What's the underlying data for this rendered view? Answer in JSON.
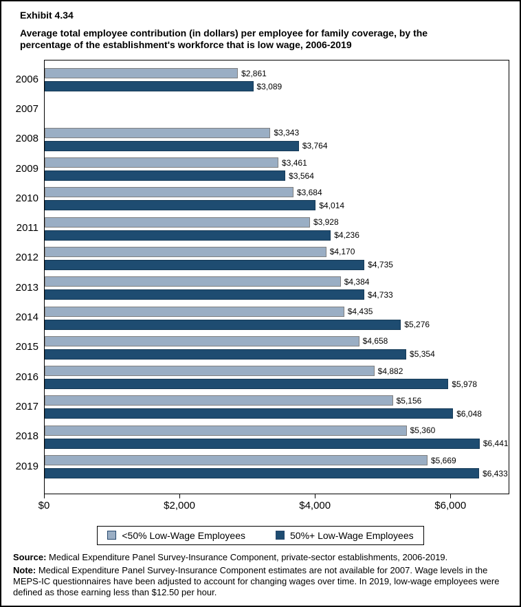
{
  "page": {
    "exhibit_label": "Exhibit 4.34",
    "title_lines": [
      "Average total employee contribution (in dollars) per employee for family coverage, by the",
      "percentage of the establishment's workforce that is low wage, 2006-2019"
    ]
  },
  "chart_data": {
    "type": "bar",
    "orientation": "horizontal",
    "title": "Average total employee contribution (in dollars) per employee for family coverage, by the percentage of the establishment's workforce that is low wage, 2006-2019",
    "categories": [
      "2006",
      "2007",
      "2008",
      "2009",
      "2010",
      "2011",
      "2012",
      "2013",
      "2014",
      "2015",
      "2016",
      "2017",
      "2018",
      "2019"
    ],
    "series": [
      {
        "name": "<50% Low-Wage Employees",
        "color": "#9aaec4",
        "border_color": "#7f7f7f",
        "values": [
          2861,
          null,
          3343,
          3461,
          3684,
          3928,
          4170,
          4384,
          4435,
          4658,
          4882,
          5156,
          5360,
          5669
        ],
        "labels": [
          "$2,861",
          "",
          "$3,343",
          "$3,461",
          "$3,684",
          "$3,928",
          "$4,170",
          "$4,384",
          "$4,435",
          "$4,658",
          "$4,882",
          "$5,156",
          "$5,360",
          "$5,669"
        ]
      },
      {
        "name": "50%+ Low-Wage Employees",
        "color": "#1e4c71",
        "border_color": "#163a57",
        "values": [
          3089,
          null,
          3764,
          3564,
          4014,
          4236,
          4735,
          4733,
          5276,
          5354,
          5978,
          6048,
          6441,
          6433
        ],
        "labels": [
          "$3,089",
          "",
          "$3,764",
          "$3,564",
          "$4,014",
          "$4,236",
          "$4,735",
          "$4,733",
          "$5,276",
          "$5,354",
          "$5,978",
          "$6,048",
          "$6,441",
          "$6,433"
        ]
      }
    ],
    "xlim": [
      0,
      6870
    ],
    "x_ticks": [
      {
        "value": 0,
        "label": "$0"
      },
      {
        "value": 2000,
        "label": "$2,000"
      },
      {
        "value": 4000,
        "label": "$4,000"
      },
      {
        "value": 6000,
        "label": "$6,000"
      }
    ],
    "grid": false,
    "legend_position": "bottom",
    "value_labels": true,
    "note": "No bars shown for 2007 (estimates not available)"
  },
  "footer": {
    "source_label": "Source:",
    "source_text": " Medical Expenditure Panel Survey-Insurance Component, private-sector establishments, 2006-2019.",
    "note_label": "Note:",
    "note_text": " Medical Expenditure Panel Survey-Insurance Component estimates are not available for 2007. Wage levels in the MEPS-IC questionnaires have been adjusted to account for changing wages over time. In 2019, low-wage employees were defined as those earning less than $12.50 per hour."
  }
}
